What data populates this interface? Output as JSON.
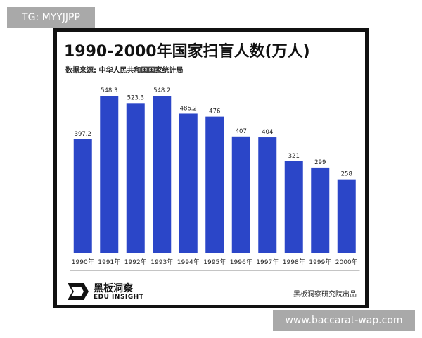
{
  "watermarks": {
    "top_left": "TG: MYYJJPP",
    "bottom_right": "www.baccarat-wap.com"
  },
  "header": {
    "title": "1990-2000年国家扫盲人数(万人)",
    "source": "数据来源: 中华人民共和国国家统计局"
  },
  "footer": {
    "logo_cn": "黑板洞察",
    "logo_en": "EDU INSIGHT",
    "publisher": "黑板洞察研究院出品"
  },
  "colors": {
    "bar": "#2b46c8",
    "baseline": "#888888",
    "text": "#222222"
  },
  "chart_data": {
    "type": "bar",
    "title": "1990-2000年国家扫盲人数(万人)",
    "xlabel": "",
    "ylabel": "",
    "categories": [
      "1990年",
      "1991年",
      "1992年",
      "1993年",
      "1994年",
      "1995年",
      "1996年",
      "1997年",
      "1998年",
      "1999年",
      "2000年"
    ],
    "values": [
      397.2,
      548.3,
      523.3,
      548.2,
      486.2,
      476,
      407,
      404,
      321,
      299,
      258
    ],
    "value_labels": [
      "397.2",
      "548.3",
      "523.3",
      "548.2",
      "486.2",
      "476",
      "407",
      "404",
      "321",
      "299",
      "258"
    ],
    "ylim": [
      0,
      600
    ],
    "grid": false,
    "legend": "none"
  }
}
